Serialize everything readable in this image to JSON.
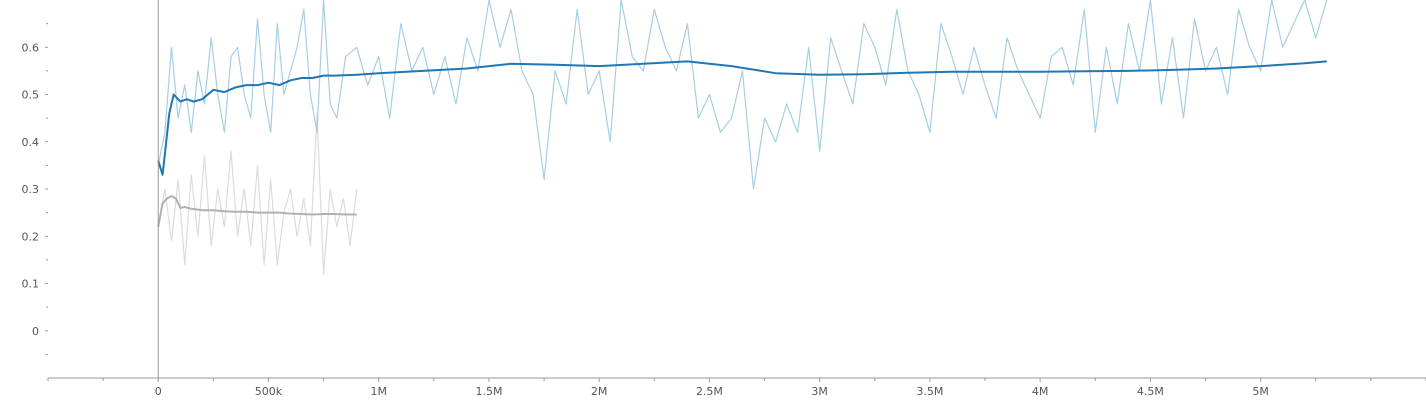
{
  "chart_data": {
    "type": "line",
    "title": "",
    "xlabel": "",
    "ylabel": "",
    "xlim": [
      -500000,
      5750000
    ],
    "ylim": [
      -0.1,
      0.7
    ],
    "grid": false,
    "x_ticks": [
      0,
      500000,
      1000000,
      1500000,
      2000000,
      2500000,
      3000000,
      3500000,
      4000000,
      4500000,
      5000000
    ],
    "x_tick_labels": [
      "0",
      "500k",
      "1M",
      "1.5M",
      "2M",
      "2.5M",
      "3M",
      "3.5M",
      "4M",
      "4.5M",
      "5M"
    ],
    "y_ticks": [
      0,
      0.1,
      0.2,
      0.3,
      0.4,
      0.5,
      0.6
    ],
    "y_tick_labels": [
      "0",
      "0.1",
      "0.2",
      "0.3",
      "0.4",
      "0.5",
      "0.6"
    ],
    "colors": {
      "blue_smoothed": "#1f77b4",
      "blue_raw": "#a6cee3",
      "gray_smoothed": "#b0b0b0",
      "gray_raw": "#dcdcdc",
      "axis": "#999999",
      "tick_label": "#555555"
    },
    "series": [
      {
        "style": "blue_smoothed",
        "x": [
          0,
          20000,
          50000,
          70000,
          100000,
          130000,
          160000,
          200000,
          250000,
          300000,
          350000,
          400000,
          450000,
          500000,
          550000,
          600000,
          650000,
          700000,
          750000,
          800000,
          900000,
          1000000,
          1200000,
          1400000,
          1600000,
          1800000,
          2000000,
          2200000,
          2400000,
          2600000,
          2800000,
          3000000,
          3200000,
          3400000,
          3600000,
          3800000,
          4000000,
          4200000,
          4400000,
          4600000,
          4800000,
          5000000,
          5200000,
          5300000
        ],
        "y": [
          0.36,
          0.33,
          0.46,
          0.5,
          0.485,
          0.49,
          0.485,
          0.49,
          0.51,
          0.505,
          0.515,
          0.52,
          0.52,
          0.525,
          0.52,
          0.53,
          0.535,
          0.535,
          0.54,
          0.54,
          0.542,
          0.545,
          0.55,
          0.555,
          0.565,
          0.563,
          0.56,
          0.565,
          0.57,
          0.56,
          0.545,
          0.542,
          0.543,
          0.546,
          0.548,
          0.548,
          0.548,
          0.549,
          0.55,
          0.552,
          0.555,
          0.56,
          0.566,
          0.57
        ]
      },
      {
        "style": "blue_raw",
        "x": [
          0,
          30000,
          60000,
          90000,
          120000,
          150000,
          180000,
          210000,
          240000,
          270000,
          300000,
          330000,
          360000,
          390000,
          420000,
          450000,
          480000,
          510000,
          540000,
          570000,
          600000,
          630000,
          660000,
          690000,
          720000,
          750000,
          780000,
          810000,
          850000,
          900000,
          950000,
          1000000,
          1050000,
          1100000,
          1150000,
          1200000,
          1250000,
          1300000,
          1350000,
          1400000,
          1450000,
          1500000,
          1550000,
          1600000,
          1650000,
          1700000,
          1750000,
          1800000,
          1850000,
          1900000,
          1950000,
          2000000,
          2050000,
          2100000,
          2150000,
          2200000,
          2250000,
          2300000,
          2350000,
          2400000,
          2450000,
          2500000,
          2550000,
          2600000,
          2650000,
          2700000,
          2750000,
          2800000,
          2850000,
          2900000,
          2950000,
          3000000,
          3050000,
          3100000,
          3150000,
          3200000,
          3250000,
          3300000,
          3350000,
          3400000,
          3450000,
          3500000,
          3550000,
          3600000,
          3650000,
          3700000,
          3750000,
          3800000,
          3850000,
          3900000,
          3950000,
          4000000,
          4050000,
          4100000,
          4150000,
          4200000,
          4250000,
          4300000,
          4350000,
          4400000,
          4450000,
          4500000,
          4550000,
          4600000,
          4650000,
          4700000,
          4750000,
          4800000,
          4850000,
          4900000,
          4950000,
          5000000,
          5050000,
          5100000,
          5150000,
          5200000,
          5250000,
          5300000
        ],
        "y": [
          0.35,
          0.42,
          0.6,
          0.45,
          0.52,
          0.42,
          0.55,
          0.48,
          0.62,
          0.5,
          0.42,
          0.58,
          0.6,
          0.5,
          0.45,
          0.66,
          0.5,
          0.42,
          0.65,
          0.5,
          0.55,
          0.6,
          0.68,
          0.5,
          0.42,
          0.7,
          0.48,
          0.45,
          0.58,
          0.6,
          0.52,
          0.58,
          0.45,
          0.65,
          0.55,
          0.6,
          0.5,
          0.58,
          0.48,
          0.62,
          0.55,
          0.7,
          0.6,
          0.68,
          0.55,
          0.5,
          0.32,
          0.55,
          0.48,
          0.68,
          0.5,
          0.55,
          0.4,
          0.7,
          0.58,
          0.55,
          0.68,
          0.6,
          0.55,
          0.65,
          0.45,
          0.5,
          0.42,
          0.45,
          0.55,
          0.3,
          0.45,
          0.4,
          0.48,
          0.42,
          0.6,
          0.38,
          0.62,
          0.55,
          0.48,
          0.65,
          0.6,
          0.52,
          0.68,
          0.55,
          0.5,
          0.42,
          0.65,
          0.58,
          0.5,
          0.6,
          0.52,
          0.45,
          0.62,
          0.55,
          0.5,
          0.45,
          0.58,
          0.6,
          0.52,
          0.68,
          0.42,
          0.6,
          0.48,
          0.65,
          0.55,
          0.7,
          0.48,
          0.62,
          0.45,
          0.66,
          0.55,
          0.6,
          0.5,
          0.68,
          0.6,
          0.55,
          0.7,
          0.6,
          0.65,
          0.7,
          0.62,
          0.7
        ]
      },
      {
        "style": "gray_smoothed",
        "x": [
          0,
          20000,
          40000,
          60000,
          80000,
          100000,
          120000,
          150000,
          200000,
          250000,
          300000,
          350000,
          400000,
          450000,
          500000,
          550000,
          600000,
          650000,
          700000,
          750000,
          800000,
          850000,
          900000
        ],
        "y": [
          0.22,
          0.27,
          0.28,
          0.285,
          0.28,
          0.26,
          0.262,
          0.258,
          0.255,
          0.255,
          0.253,
          0.252,
          0.252,
          0.25,
          0.25,
          0.25,
          0.248,
          0.247,
          0.246,
          0.247,
          0.247,
          0.246,
          0.246
        ]
      },
      {
        "style": "gray_raw",
        "x": [
          0,
          30000,
          60000,
          90000,
          120000,
          150000,
          180000,
          210000,
          240000,
          270000,
          300000,
          330000,
          360000,
          390000,
          420000,
          450000,
          480000,
          510000,
          540000,
          570000,
          600000,
          630000,
          660000,
          690000,
          720000,
          750000,
          780000,
          810000,
          840000,
          870000,
          900000
        ],
        "y": [
          0.22,
          0.3,
          0.19,
          0.32,
          0.14,
          0.33,
          0.2,
          0.37,
          0.18,
          0.3,
          0.22,
          0.38,
          0.2,
          0.3,
          0.18,
          0.35,
          0.14,
          0.32,
          0.14,
          0.25,
          0.3,
          0.2,
          0.28,
          0.18,
          0.46,
          0.12,
          0.3,
          0.22,
          0.28,
          0.18,
          0.3
        ]
      }
    ]
  }
}
